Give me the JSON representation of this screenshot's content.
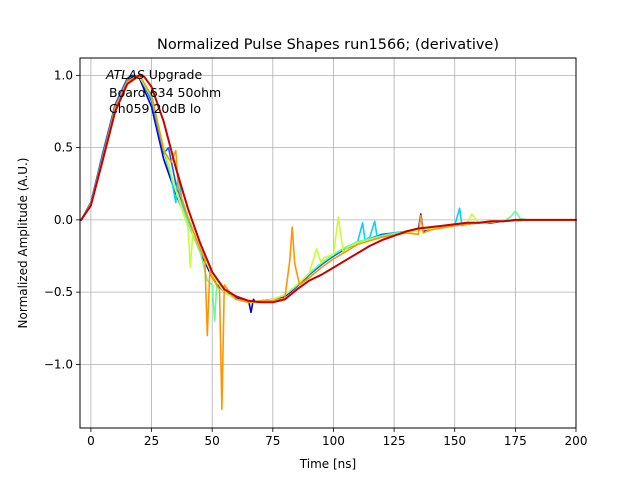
{
  "chart_data": {
    "type": "line",
    "title": "Normalized Pulse Shapes run1566; (derivative)",
    "xlabel": "Time [ns]",
    "ylabel": "Normalized Amplitude (A.U.)",
    "xlim": [
      -4.5,
      200
    ],
    "ylim": [
      -1.44,
      1.12
    ],
    "xticks": [
      0,
      25,
      50,
      75,
      100,
      125,
      150,
      175,
      200
    ],
    "yticks": [
      -1.0,
      -0.5,
      0.0,
      0.5,
      1.0
    ],
    "xtick_labels": [
      "0",
      "25",
      "50",
      "75",
      "100",
      "125",
      "150",
      "175",
      "200"
    ],
    "ytick_labels": [
      "−1.0",
      "−0.5",
      "0.0",
      "0.5",
      "1.0"
    ],
    "grid": true,
    "legend": "none",
    "annotations": {
      "atlas": "ATLAS",
      "upgrade": " Upgrade",
      "board": "Board 634 50ohm",
      "channel": "Ch059 20dB lo"
    },
    "series": [
      {
        "color": "#0000c8",
        "x": [
          -4,
          0,
          5,
          10,
          15,
          18,
          20,
          22,
          25,
          30,
          35,
          40,
          45,
          50,
          55,
          60,
          65,
          66,
          67,
          68,
          70,
          75,
          80,
          85,
          90,
          95,
          100,
          105,
          110,
          115,
          120,
          125,
          130,
          135,
          136,
          137,
          138,
          140,
          145,
          150,
          155,
          160,
          165,
          170,
          175,
          180,
          185,
          190,
          195,
          200
        ],
        "y": [
          0.0,
          0.12,
          0.45,
          0.78,
          0.96,
          1.0,
          0.98,
          0.9,
          0.78,
          0.42,
          0.18,
          -0.02,
          -0.22,
          -0.4,
          -0.5,
          -0.54,
          -0.56,
          -0.64,
          -0.55,
          -0.57,
          -0.56,
          -0.55,
          -0.53,
          -0.46,
          -0.38,
          -0.31,
          -0.25,
          -0.2,
          -0.16,
          -0.13,
          -0.11,
          -0.1,
          -0.08,
          -0.07,
          0.04,
          -0.08,
          -0.07,
          -0.06,
          -0.05,
          -0.04,
          -0.03,
          -0.02,
          -0.02,
          -0.01,
          0.0,
          0.0,
          0.0,
          0.0,
          0.0,
          0.0
        ]
      },
      {
        "color": "#0064ff",
        "x": [
          -4,
          0,
          5,
          10,
          15,
          17,
          20,
          22,
          25,
          28,
          30,
          32,
          35,
          40,
          45,
          50,
          55,
          60,
          65,
          70,
          75,
          80,
          85,
          90,
          95,
          100,
          105,
          110,
          115,
          120,
          125,
          130,
          135,
          140,
          145,
          150,
          160,
          170,
          180,
          190,
          200
        ],
        "y": [
          0.0,
          0.12,
          0.47,
          0.8,
          0.98,
          1.0,
          0.99,
          0.93,
          0.82,
          0.6,
          0.46,
          0.5,
          0.25,
          0.0,
          -0.2,
          -0.38,
          -0.5,
          -0.55,
          -0.56,
          -0.57,
          -0.55,
          -0.52,
          -0.46,
          -0.38,
          -0.31,
          -0.25,
          -0.2,
          -0.16,
          -0.13,
          -0.1,
          -0.09,
          -0.08,
          -0.07,
          -0.06,
          -0.05,
          -0.04,
          -0.02,
          -0.01,
          0.0,
          0.0,
          0.0
        ]
      },
      {
        "color": "#00d2ff",
        "x": [
          -4,
          0,
          5,
          10,
          15,
          20,
          25,
          30,
          33,
          35,
          36,
          38,
          40,
          45,
          50,
          55,
          60,
          65,
          70,
          75,
          80,
          85,
          90,
          95,
          100,
          105,
          110,
          112,
          113,
          115,
          117,
          118,
          120,
          125,
          130,
          140,
          145,
          150,
          152,
          153,
          155,
          160,
          170,
          180,
          190,
          200
        ],
        "y": [
          0.0,
          0.11,
          0.44,
          0.77,
          0.95,
          0.99,
          0.84,
          0.48,
          0.3,
          0.12,
          0.32,
          0.08,
          0.0,
          -0.2,
          -0.38,
          -0.5,
          -0.55,
          -0.57,
          -0.57,
          -0.55,
          -0.52,
          -0.45,
          -0.37,
          -0.3,
          -0.24,
          -0.19,
          -0.15,
          -0.02,
          -0.14,
          -0.12,
          -0.01,
          -0.12,
          -0.11,
          -0.09,
          -0.08,
          -0.06,
          -0.05,
          -0.04,
          0.08,
          -0.04,
          -0.03,
          -0.02,
          -0.01,
          0.0,
          0.0,
          0.0
        ]
      },
      {
        "color": "#64ff96",
        "x": [
          -4,
          0,
          5,
          10,
          15,
          20,
          25,
          30,
          35,
          40,
          45,
          48,
          50,
          51,
          52,
          55,
          60,
          65,
          70,
          75,
          80,
          85,
          90,
          95,
          100,
          105,
          110,
          120,
          130,
          140,
          150,
          160,
          170,
          173,
          175,
          177,
          180,
          190,
          200
        ],
        "y": [
          0.0,
          0.11,
          0.43,
          0.76,
          0.95,
          0.99,
          0.85,
          0.5,
          0.2,
          -0.02,
          -0.22,
          -0.42,
          -0.45,
          -0.7,
          -0.42,
          -0.5,
          -0.55,
          -0.57,
          -0.56,
          -0.55,
          -0.52,
          -0.45,
          -0.37,
          -0.3,
          -0.24,
          -0.19,
          -0.15,
          -0.11,
          -0.08,
          -0.06,
          -0.04,
          -0.02,
          -0.01,
          0.02,
          0.06,
          0.01,
          0.0,
          0.0,
          0.0
        ]
      },
      {
        "color": "#c8ff32",
        "x": [
          -4,
          0,
          5,
          10,
          15,
          20,
          25,
          30,
          35,
          40,
          41,
          42,
          45,
          50,
          55,
          60,
          65,
          70,
          75,
          80,
          85,
          90,
          93,
          95,
          96,
          100,
          102,
          104,
          106,
          110,
          120,
          130,
          140,
          150,
          155,
          157,
          160,
          170,
          180,
          190,
          200
        ],
        "y": [
          0.0,
          0.11,
          0.43,
          0.76,
          0.94,
          0.99,
          0.86,
          0.5,
          0.2,
          -0.05,
          -0.33,
          -0.08,
          -0.2,
          -0.38,
          -0.5,
          -0.55,
          -0.57,
          -0.57,
          -0.55,
          -0.52,
          -0.45,
          -0.37,
          -0.2,
          -0.3,
          -0.26,
          -0.24,
          0.02,
          -0.22,
          -0.19,
          -0.16,
          -0.12,
          -0.09,
          -0.06,
          -0.04,
          -0.03,
          0.04,
          -0.02,
          -0.01,
          0.0,
          0.0,
          0.0
        ]
      },
      {
        "color": "#ff9600",
        "x": [
          -4,
          0,
          5,
          10,
          15,
          20,
          25,
          30,
          33,
          35,
          36,
          40,
          45,
          47,
          48,
          49,
          50,
          53,
          54,
          55,
          58,
          60,
          65,
          70,
          75,
          80,
          82,
          83,
          84,
          86,
          90,
          95,
          100,
          105,
          110,
          120,
          130,
          135,
          136,
          137,
          140,
          150,
          160,
          170,
          180,
          190,
          200
        ],
        "y": [
          0.0,
          0.11,
          0.44,
          0.78,
          0.96,
          1.0,
          0.86,
          0.48,
          0.4,
          0.48,
          0.22,
          0.02,
          -0.2,
          -0.28,
          -0.8,
          -0.35,
          -0.4,
          -0.48,
          -1.31,
          -0.45,
          -0.52,
          -0.55,
          -0.57,
          -0.56,
          -0.56,
          -0.54,
          -0.28,
          -0.05,
          -0.3,
          -0.45,
          -0.4,
          -0.33,
          -0.27,
          -0.22,
          -0.17,
          -0.12,
          -0.09,
          -0.1,
          0.03,
          -0.09,
          -0.07,
          -0.04,
          -0.02,
          -0.01,
          0.0,
          0.0,
          0.0
        ]
      },
      {
        "color": "#c80000",
        "x": [
          -4,
          0,
          5,
          10,
          15,
          20,
          22,
          25,
          30,
          35,
          40,
          45,
          50,
          55,
          60,
          65,
          70,
          75,
          80,
          85,
          90,
          95,
          100,
          105,
          110,
          115,
          120,
          125,
          130,
          135,
          140,
          145,
          150,
          155,
          160,
          165,
          170,
          175,
          180,
          185,
          190,
          195,
          200
        ],
        "y": [
          0.0,
          0.1,
          0.42,
          0.75,
          0.94,
          1.0,
          0.99,
          0.92,
          0.68,
          0.36,
          0.08,
          -0.16,
          -0.36,
          -0.48,
          -0.53,
          -0.56,
          -0.57,
          -0.57,
          -0.55,
          -0.48,
          -0.42,
          -0.38,
          -0.33,
          -0.28,
          -0.23,
          -0.18,
          -0.14,
          -0.11,
          -0.08,
          -0.06,
          -0.05,
          -0.04,
          -0.03,
          -0.02,
          -0.02,
          -0.01,
          -0.01,
          0.0,
          0.0,
          0.0,
          0.0,
          0.0,
          0.0
        ]
      }
    ]
  }
}
